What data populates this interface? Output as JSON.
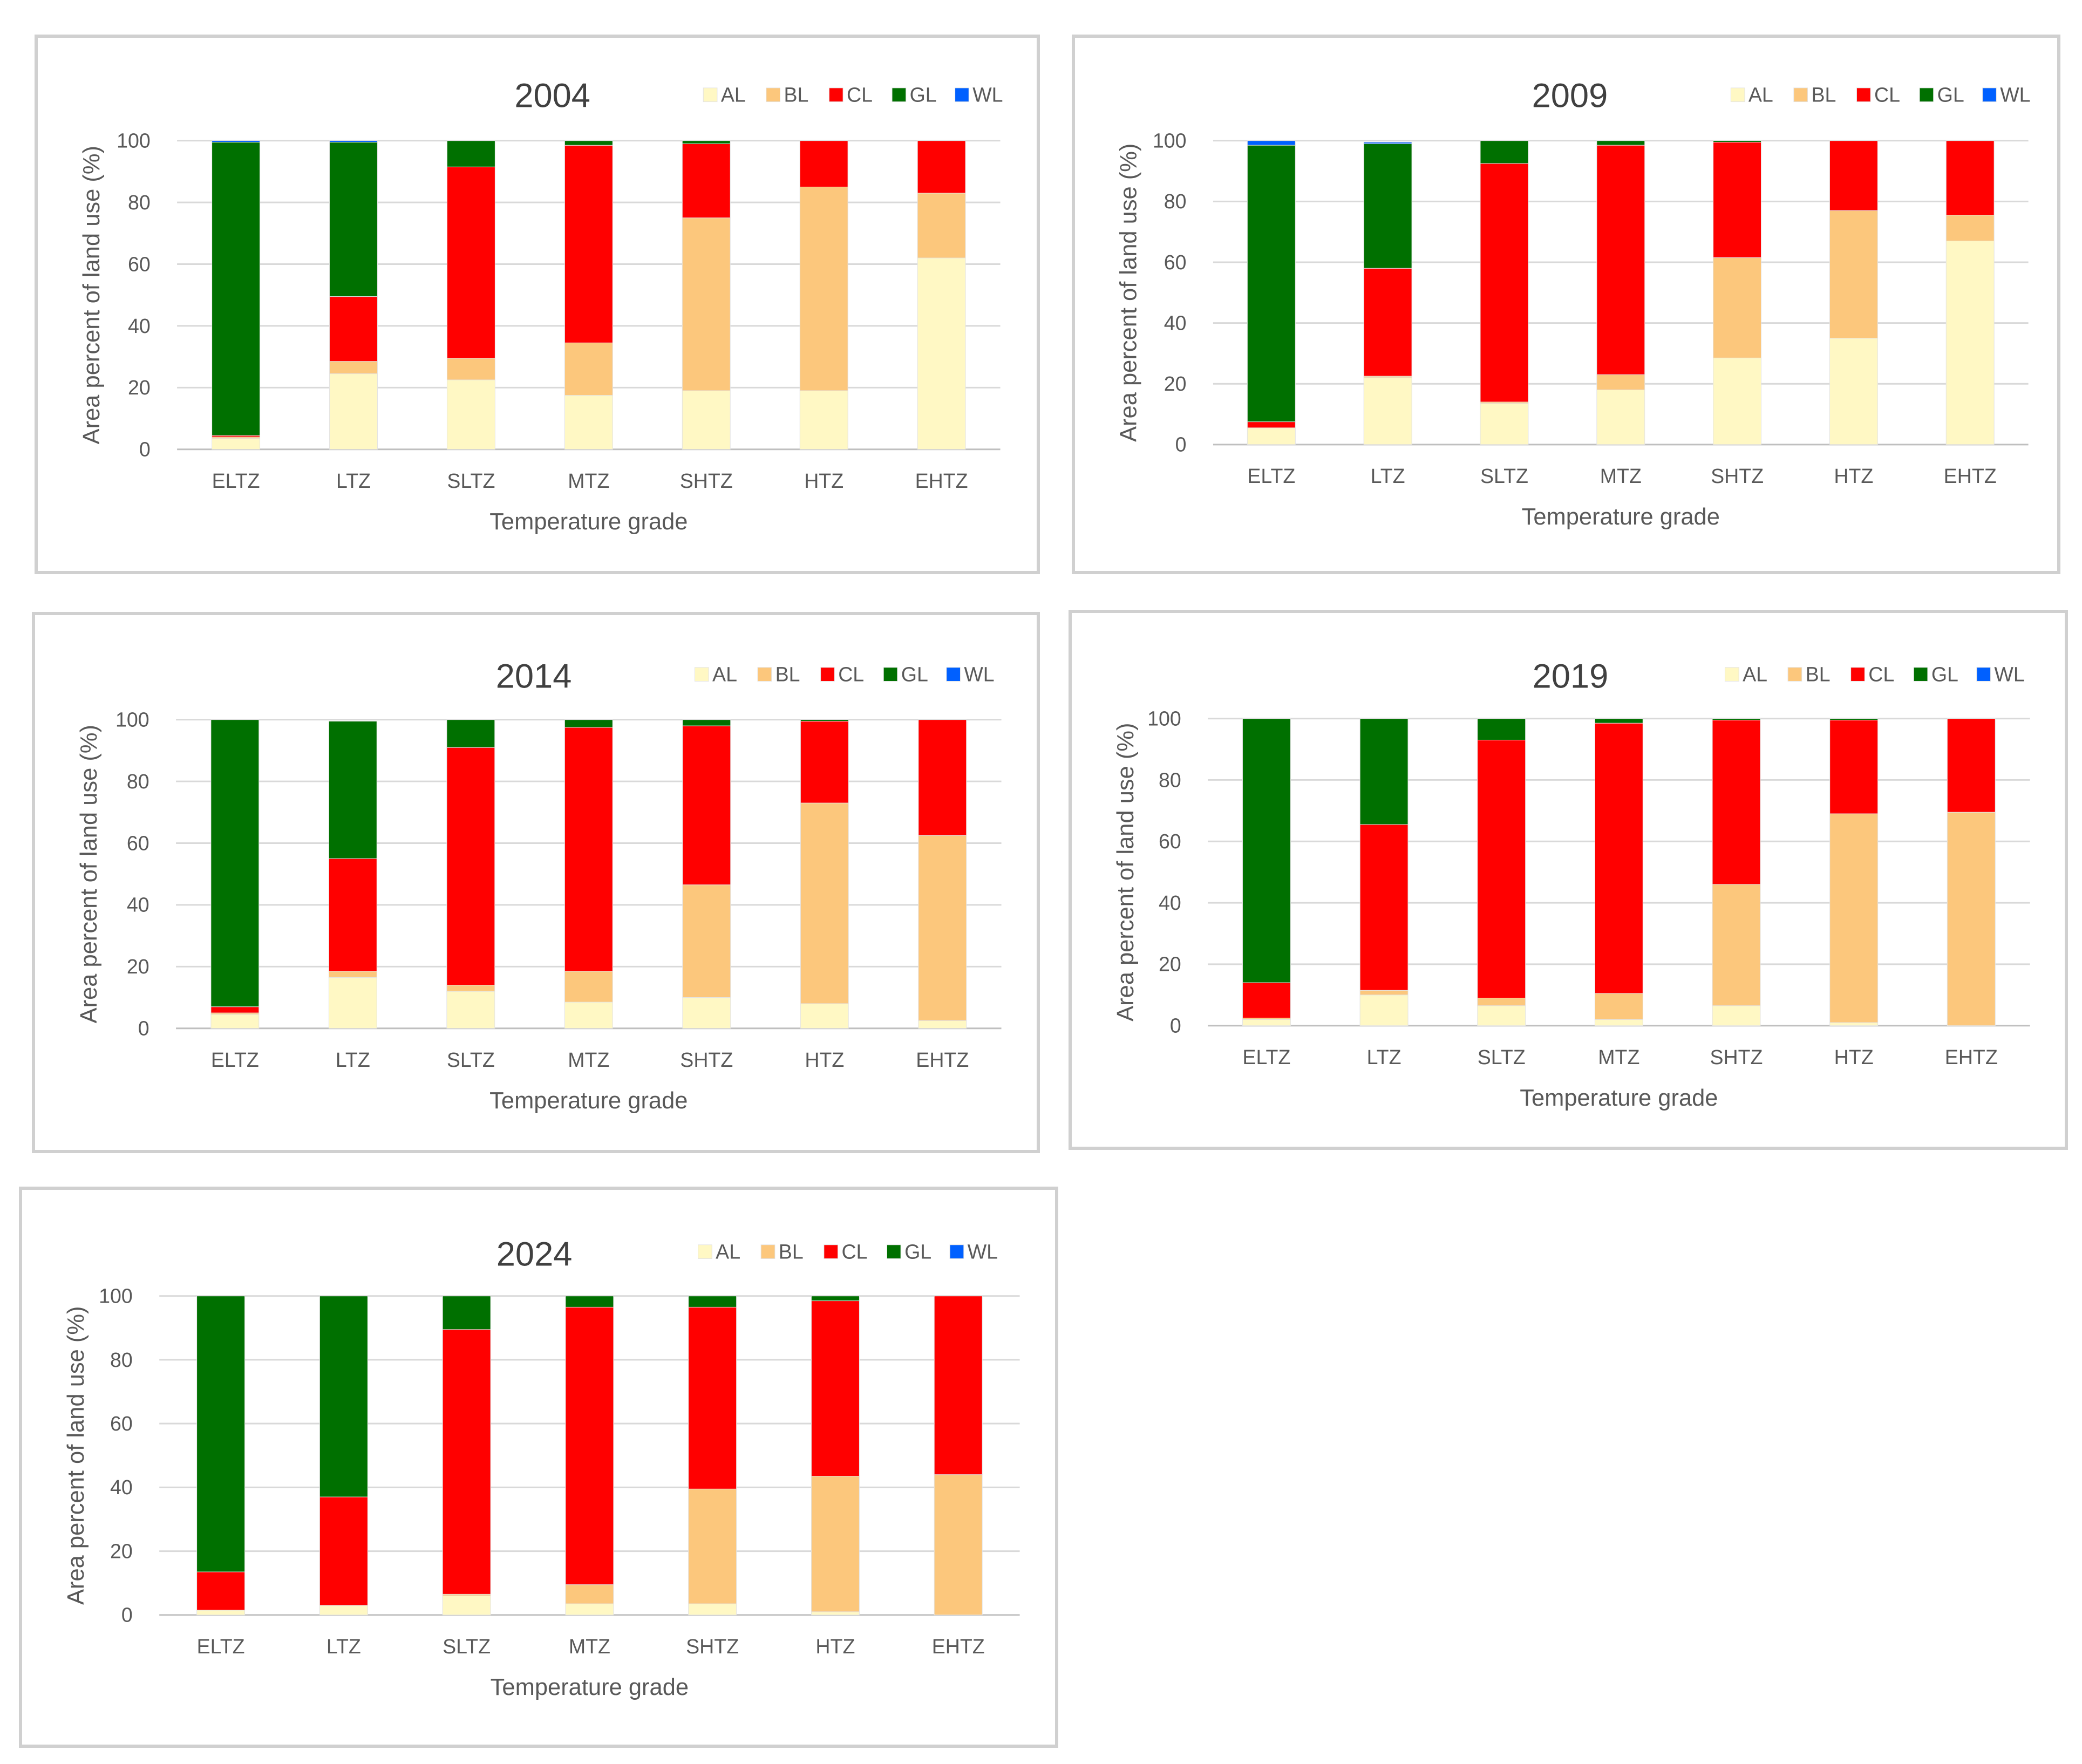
{
  "colors": {
    "AL": "#fff8c4",
    "BL": "#fcc77c",
    "CL": "#ff0000",
    "GL": "#007000",
    "WL": "#0060ff"
  },
  "chart_data": [
    {
      "type": "bar",
      "stacked": true,
      "title": "2004",
      "xlabel": "Temperature grade",
      "ylabel": "Area percent of land use (%)",
      "ylim": [
        0,
        100
      ],
      "yticks": [
        "0",
        "20",
        "40",
        "60",
        "80",
        "100"
      ],
      "grid": true,
      "legend": "top-right",
      "categories": [
        "ELTZ",
        "LTZ",
        "SLTZ",
        "MTZ",
        "SHTZ",
        "HTZ",
        "EHTZ"
      ],
      "series": [
        {
          "name": "AL",
          "values": [
            3.5,
            24.5,
            22.5,
            17.5,
            19,
            19,
            62
          ]
        },
        {
          "name": "BL",
          "values": [
            0.5,
            4,
            7,
            17,
            56,
            66,
            21
          ]
        },
        {
          "name": "CL",
          "values": [
            0.5,
            21,
            62,
            64,
            24,
            15,
            17
          ]
        },
        {
          "name": "GL",
          "values": [
            95,
            50,
            8.5,
            1.5,
            1,
            0,
            0
          ]
        },
        {
          "name": "WL",
          "values": [
            0.5,
            0.5,
            0,
            0,
            0,
            0,
            0
          ]
        }
      ]
    },
    {
      "type": "bar",
      "stacked": true,
      "title": "2009",
      "xlabel": "Temperature grade",
      "ylabel": "Area percent of land use (%)",
      "ylim": [
        0,
        100
      ],
      "yticks": [
        "0",
        "20",
        "40",
        "60",
        "80",
        "100"
      ],
      "grid": true,
      "legend": "top-right",
      "categories": [
        "ELTZ",
        "LTZ",
        "SLTZ",
        "MTZ",
        "SHTZ",
        "HTZ",
        "EHTZ"
      ],
      "series": [
        {
          "name": "AL",
          "values": [
            5.5,
            22,
            13.5,
            18,
            28.5,
            35,
            67
          ]
        },
        {
          "name": "BL",
          "values": [
            0,
            0.5,
            0.5,
            5,
            33,
            42,
            8.5
          ]
        },
        {
          "name": "CL",
          "values": [
            2,
            35.5,
            78.5,
            75.5,
            38,
            23,
            24.5
          ]
        },
        {
          "name": "GL",
          "values": [
            91,
            41,
            7.5,
            1.5,
            0.5,
            0,
            0
          ]
        },
        {
          "name": "WL",
          "values": [
            1.5,
            0.5,
            0,
            0,
            0,
            0,
            0
          ]
        }
      ]
    },
    {
      "type": "bar",
      "stacked": true,
      "title": "2014",
      "xlabel": "Temperature grade",
      "ylabel": "Area percent of land use (%)",
      "ylim": [
        0,
        100
      ],
      "yticks": [
        "0",
        "20",
        "40",
        "60",
        "80",
        "100"
      ],
      "grid": true,
      "legend": "top-right",
      "categories": [
        "ELTZ",
        "LTZ",
        "SLTZ",
        "MTZ",
        "SHTZ",
        "HTZ",
        "EHTZ"
      ],
      "series": [
        {
          "name": "AL",
          "values": [
            4.5,
            16.5,
            12,
            8.5,
            10,
            8,
            2.5
          ]
        },
        {
          "name": "BL",
          "values": [
            0.5,
            2,
            2,
            10,
            36.5,
            65,
            60
          ]
        },
        {
          "name": "CL",
          "values": [
            2,
            36.5,
            77,
            79,
            51.5,
            26.5,
            37.5
          ]
        },
        {
          "name": "GL",
          "values": [
            93,
            44.5,
            9,
            2.5,
            2,
            0.5,
            0
          ]
        },
        {
          "name": "WL",
          "values": [
            0,
            0,
            0,
            0,
            0,
            0,
            0
          ]
        }
      ]
    },
    {
      "type": "bar",
      "stacked": true,
      "title": "2019",
      "xlabel": "Temperature grade",
      "ylabel": "Area percent of land use (%)",
      "ylim": [
        0,
        100
      ],
      "yticks": [
        "0",
        "20",
        "40",
        "60",
        "80",
        "100"
      ],
      "grid": true,
      "legend": "top-right",
      "categories": [
        "ELTZ",
        "LTZ",
        "SLTZ",
        "MTZ",
        "SHTZ",
        "HTZ",
        "EHTZ"
      ],
      "series": [
        {
          "name": "AL",
          "values": [
            2,
            10,
            6.5,
            2,
            6.5,
            1,
            0
          ]
        },
        {
          "name": "BL",
          "values": [
            0.5,
            1.5,
            2.5,
            8.5,
            39.5,
            68,
            69.5
          ]
        },
        {
          "name": "CL",
          "values": [
            11.5,
            54,
            84,
            88,
            53.5,
            30.5,
            30.5
          ]
        },
        {
          "name": "GL",
          "values": [
            86,
            34.5,
            7,
            1.5,
            0.5,
            0.5,
            0
          ]
        },
        {
          "name": "WL",
          "values": [
            0,
            0,
            0,
            0,
            0,
            0,
            0
          ]
        }
      ]
    },
    {
      "type": "bar",
      "stacked": true,
      "title": "2024",
      "xlabel": "Temperature grade",
      "ylabel": "Area percent of land use (%)",
      "ylim": [
        0,
        100
      ],
      "yticks": [
        "0",
        "20",
        "40",
        "60",
        "80",
        "100"
      ],
      "grid": true,
      "legend": "top-right",
      "categories": [
        "ELTZ",
        "LTZ",
        "SLTZ",
        "MTZ",
        "SHTZ",
        "HTZ",
        "EHTZ"
      ],
      "series": [
        {
          "name": "AL",
          "values": [
            1.5,
            3,
            6,
            3.5,
            3.5,
            1,
            0
          ]
        },
        {
          "name": "BL",
          "values": [
            0,
            0,
            0.5,
            6,
            36,
            42.5,
            44
          ]
        },
        {
          "name": "CL",
          "values": [
            12,
            34,
            83,
            87,
            57,
            55,
            56
          ]
        },
        {
          "name": "GL",
          "values": [
            86.5,
            63,
            10.5,
            3.5,
            3.5,
            1.5,
            0
          ]
        },
        {
          "name": "WL",
          "values": [
            0,
            0,
            0,
            0,
            0,
            0,
            0
          ]
        }
      ]
    }
  ]
}
